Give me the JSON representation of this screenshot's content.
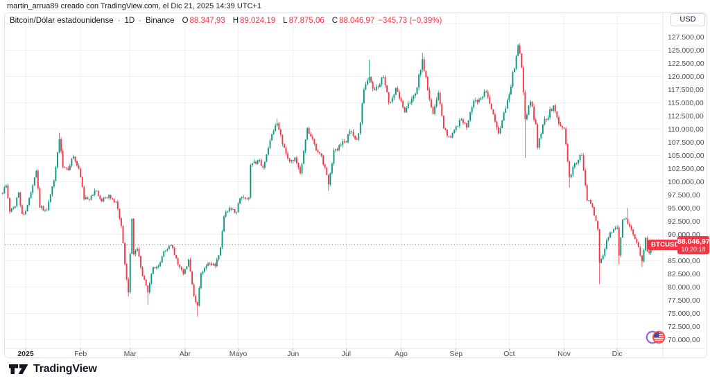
{
  "attribution": "martin_arrua89 creado con TradingView.com, el Dic 21, 2025 14:39 UTC+1",
  "currency_button": "USD",
  "legend": {
    "symbol": "Bitcoin/Dólar estadounidense",
    "separator": "·",
    "interval": "1D",
    "exchange": "Binance",
    "open_label": "O",
    "open": "88.347,93",
    "high_label": "H",
    "high": "89.024,19",
    "low_label": "L",
    "low": "87.875,06",
    "close_label": "C",
    "close": "88.046,97",
    "change": "−345,73 (−0,39%)"
  },
  "price_line": {
    "symbol_label": "BTCUSD",
    "price": "88.046,97",
    "countdown": "10:20:18",
    "value": 88046.97
  },
  "logo": {
    "text": "TradingView"
  },
  "colors": {
    "up": "#089981",
    "down": "#F23645",
    "accent_red": "#F23645",
    "grid": "rgba(42,46,57,0.07)",
    "axis_text": "#4a4e59",
    "separator": "#e0e3eb"
  },
  "price_scale": {
    "ticks": [
      {
        "label": "127.500,00",
        "value": 127500
      },
      {
        "label": "125.000,00",
        "value": 125000
      },
      {
        "label": "122.500,00",
        "value": 122500
      },
      {
        "label": "120.000,00",
        "value": 120000
      },
      {
        "label": "117.500,00",
        "value": 117500
      },
      {
        "label": "115.000,00",
        "value": 115000
      },
      {
        "label": "112.500,00",
        "value": 112500
      },
      {
        "label": "110.000,00",
        "value": 110000
      },
      {
        "label": "107.500,00",
        "value": 107500
      },
      {
        "label": "105.000,00",
        "value": 105000
      },
      {
        "label": "102.500,00",
        "value": 102500
      },
      {
        "label": "100.000,00",
        "value": 100000
      },
      {
        "label": "97.500,00",
        "value": 97500
      },
      {
        "label": "95.000,00",
        "value": 95000
      },
      {
        "label": "92.500,00",
        "value": 92500
      },
      {
        "label": "90.000,00",
        "value": 90000
      },
      {
        "label": "85.000,00",
        "value": 85000
      },
      {
        "label": "82.500,00",
        "value": 82500
      },
      {
        "label": "80.000,00",
        "value": 80000
      },
      {
        "label": "77.500,00",
        "value": 77500
      },
      {
        "label": "75.000,00",
        "value": 75000
      },
      {
        "label": "72.500,00",
        "value": 72500
      },
      {
        "label": "70.000,00",
        "value": 70000
      }
    ]
  },
  "time_scale": {
    "months": [
      {
        "label": "2025",
        "day": 0,
        "emphasis": true
      },
      {
        "label": "Feb",
        "day": 31
      },
      {
        "label": "Mar",
        "day": 59
      },
      {
        "label": "Abr",
        "day": 90
      },
      {
        "label": "Mayo",
        "day": 120
      },
      {
        "label": "Jun",
        "day": 151
      },
      {
        "label": "Jul",
        "day": 181
      },
      {
        "label": "Ago",
        "day": 212
      },
      {
        "label": "Sep",
        "day": 243
      },
      {
        "label": "Oct",
        "day": 273
      },
      {
        "label": "Nov",
        "day": 304
      },
      {
        "label": "Dic",
        "day": 334
      }
    ]
  },
  "chart_data": {
    "type": "candlestick",
    "title": "Bitcoin/Dólar estadounidense",
    "symbol": "BTCUSD",
    "interval": "1D",
    "exchange": "Binance",
    "x_unit": "days from 2025-01-01",
    "x_range": [
      -13,
      354
    ],
    "price_unit": "USD",
    "ylim": [
      68300,
      132000
    ],
    "label_step": 2500,
    "grid_step": 5000,
    "last_close": 88046.97,
    "anchors": [
      [
        -13,
        97800
      ],
      [
        -11,
        99300
      ],
      [
        -9,
        94300
      ],
      [
        -6,
        95400
      ],
      [
        -4,
        98000
      ],
      [
        -2,
        93900
      ],
      [
        0,
        94400
      ],
      [
        2,
        96900
      ],
      [
        6,
        102100
      ],
      [
        8,
        95100
      ],
      [
        12,
        94600
      ],
      [
        16,
        100200
      ],
      [
        19,
        108100
      ],
      [
        21,
        102800
      ],
      [
        24,
        102200
      ],
      [
        27,
        104800
      ],
      [
        30,
        102500
      ],
      [
        33,
        96700
      ],
      [
        36,
        96600
      ],
      [
        39,
        98300
      ],
      [
        43,
        96300
      ],
      [
        47,
        97500
      ],
      [
        51,
        96200
      ],
      [
        54,
        91600
      ],
      [
        56,
        84400
      ],
      [
        58,
        79000
      ],
      [
        60,
        93000
      ],
      [
        61,
        86200
      ],
      [
        63,
        87300
      ],
      [
        66,
        82100
      ],
      [
        69,
        79000
      ],
      [
        72,
        83800
      ],
      [
        75,
        84000
      ],
      [
        78,
        86800
      ],
      [
        82,
        88000
      ],
      [
        86,
        84300
      ],
      [
        89,
        82500
      ],
      [
        92,
        85200
      ],
      [
        95,
        78300
      ],
      [
        97,
        76500
      ],
      [
        99,
        82600
      ],
      [
        103,
        84500
      ],
      [
        107,
        84000
      ],
      [
        110,
        87500
      ],
      [
        112,
        93400
      ],
      [
        115,
        95000
      ],
      [
        119,
        94200
      ],
      [
        121,
        96900
      ],
      [
        126,
        97000
      ],
      [
        127,
        103200
      ],
      [
        131,
        104100
      ],
      [
        134,
        102700
      ],
      [
        137,
        106400
      ],
      [
        141,
        110700
      ],
      [
        142,
        111100
      ],
      [
        145,
        107200
      ],
      [
        149,
        103900
      ],
      [
        152,
        104600
      ],
      [
        155,
        101600
      ],
      [
        159,
        110200
      ],
      [
        161,
        108600
      ],
      [
        164,
        106000
      ],
      [
        167,
        105000
      ],
      [
        171,
        99500
      ],
      [
        174,
        106000
      ],
      [
        178,
        107000
      ],
      [
        181,
        107500
      ],
      [
        183,
        109600
      ],
      [
        187,
        108000
      ],
      [
        189,
        111200
      ],
      [
        191,
        117500
      ],
      [
        194,
        119900
      ],
      [
        196,
        117700
      ],
      [
        199,
        118000
      ],
      [
        202,
        119900
      ],
      [
        205,
        115100
      ],
      [
        209,
        117800
      ],
      [
        211,
        115800
      ],
      [
        214,
        113200
      ],
      [
        217,
        115000
      ],
      [
        220,
        116700
      ],
      [
        223,
        121300
      ],
      [
        224,
        123300
      ],
      [
        227,
        117400
      ],
      [
        230,
        112900
      ],
      [
        233,
        116900
      ],
      [
        236,
        110100
      ],
      [
        240,
        108400
      ],
      [
        245,
        111700
      ],
      [
        249,
        110300
      ],
      [
        253,
        115400
      ],
      [
        257,
        115900
      ],
      [
        260,
        117100
      ],
      [
        264,
        112800
      ],
      [
        267,
        109200
      ],
      [
        271,
        113900
      ],
      [
        273,
        116600
      ],
      [
        277,
        123900
      ],
      [
        278,
        125900
      ],
      [
        280,
        121700
      ],
      [
        282,
        111900
      ],
      [
        285,
        115200
      ],
      [
        288,
        110900
      ],
      [
        289,
        106500
      ],
      [
        292,
        110900
      ],
      [
        298,
        114500
      ],
      [
        301,
        111000
      ],
      [
        304,
        110100
      ],
      [
        307,
        100900
      ],
      [
        310,
        103500
      ],
      [
        314,
        105000
      ],
      [
        317,
        96500
      ],
      [
        320,
        95200
      ],
      [
        323,
        91000
      ],
      [
        324,
        84600
      ],
      [
        326,
        86000
      ],
      [
        328,
        88900
      ],
      [
        332,
        91000
      ],
      [
        334,
        91300
      ],
      [
        335,
        86000
      ],
      [
        337,
        92800
      ],
      [
        339,
        93000
      ],
      [
        341,
        91500
      ],
      [
        343,
        90000
      ],
      [
        345,
        88500
      ],
      [
        347,
        86000
      ],
      [
        348,
        84900
      ],
      [
        349,
        87000
      ],
      [
        350,
        89300
      ],
      [
        351,
        86800
      ],
      [
        352,
        86500
      ],
      [
        353,
        87200
      ],
      [
        354,
        88046.97
      ]
    ],
    "wick_extremes": [
      [
        19,
        "h",
        109350
      ],
      [
        58,
        "l",
        78200
      ],
      [
        69,
        "l",
        76600
      ],
      [
        97,
        "l",
        74420
      ],
      [
        142,
        "h",
        112000
      ],
      [
        171,
        "l",
        98300
      ],
      [
        194,
        "h",
        123200
      ],
      [
        224,
        "h",
        124500
      ],
      [
        278,
        "h",
        126200
      ],
      [
        282,
        "l",
        104500
      ],
      [
        307,
        "l",
        98900
      ],
      [
        324,
        "l",
        80550
      ],
      [
        335,
        "l",
        84300
      ],
      [
        340,
        "h",
        95000
      ],
      [
        348,
        "l",
        83800
      ]
    ]
  }
}
